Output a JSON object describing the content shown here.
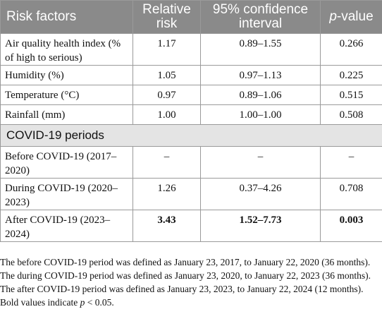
{
  "table": {
    "headers": {
      "risk_factors": "Risk factors",
      "relative_risk": "Relative risk",
      "ci": "95% confidence interval",
      "p_value_italic": "p",
      "p_value_rest": "-value"
    },
    "rows": [
      {
        "label": "Air quality health index (% of high to serious)",
        "rr": "1.17",
        "ci": "0.89–1.55",
        "p": "0.266"
      },
      {
        "label": "Humidity (%)",
        "rr": "1.05",
        "ci": "0.97–1.13",
        "p": "0.225"
      },
      {
        "label": "Temperature (°C)",
        "rr": "0.97",
        "ci": "0.89–1.06",
        "p": "0.515"
      },
      {
        "label": "Rainfall (mm)",
        "rr": "1.00",
        "ci": "1.00–1.00",
        "p": "0.508"
      }
    ],
    "section_title": "COVID-19 periods",
    "period_rows": [
      {
        "label": "Before COVID-19 (2017–2020)",
        "rr": "–",
        "ci": "–",
        "p": "–"
      },
      {
        "label": "During COVID-19 (2020–2023)",
        "rr": "1.26",
        "ci": "0.37–4.26",
        "p": "0.708"
      },
      {
        "label": "After COVID-19 (2023–2024)",
        "rr": "3.43",
        "ci": "1.52–7.73",
        "p": "0.003",
        "bold": true
      }
    ]
  },
  "notes": {
    "definition": "The before COVID-19 period was defined as January 23, 2017, to January 22, 2020 (36 months). The during COVID-19 period was defined as January 23, 2020, to January 22, 2023 (36 months). The after COVID-19 period was defined as January 23, 2023, to January 22, 2024 (12 months).",
    "bold_prefix": "Bold values indicate ",
    "bold_p": "p",
    "bold_suffix": " < 0.05."
  }
}
